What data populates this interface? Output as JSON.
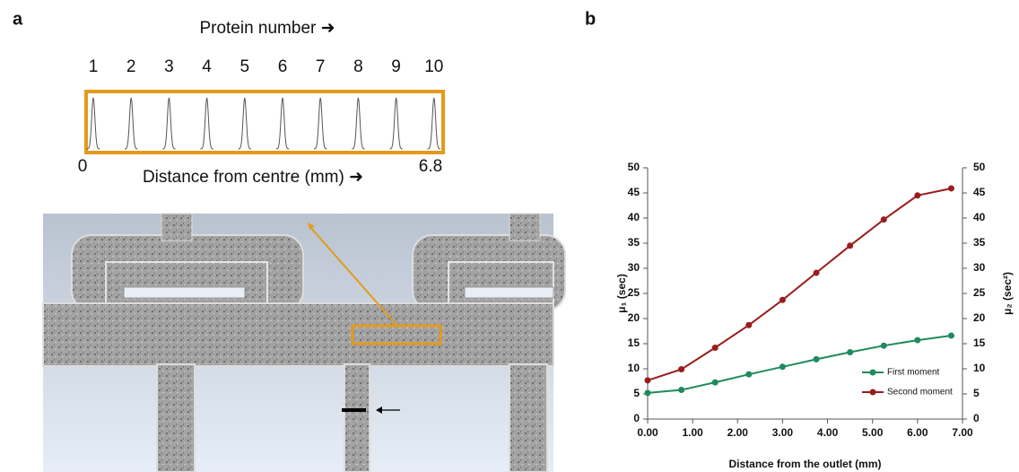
{
  "panel_a": {
    "label": "a",
    "protein_axis_title": "Protein number ➜",
    "protein_numbers": [
      "1",
      "2",
      "3",
      "4",
      "5",
      "6",
      "7",
      "8",
      "9",
      "10"
    ],
    "distance_start": "0",
    "distance_end": "6.8",
    "distance_axis_title": "Distance from centre (mm) ➜"
  },
  "panel_b": {
    "label": "b"
  },
  "chart_data": {
    "type": "line",
    "x_label": "Distance from the outlet (mm)",
    "y_label": "μ₁ (sec)",
    "y2_label": "μ₂ (sec²)",
    "x": [
      0,
      0.75,
      1.5,
      2.25,
      3,
      3.75,
      4.5,
      5.25,
      6,
      6.75
    ],
    "series": [
      {
        "name": "First moment",
        "color": "#1e8a5e",
        "values": [
          5.2,
          5.8,
          7.3,
          8.9,
          10.4,
          11.9,
          13.3,
          14.6,
          15.7,
          16.6
        ]
      },
      {
        "name": "Second moment",
        "color": "#9b1c1c",
        "axis": "y2",
        "values": [
          7.7,
          9.9,
          14.2,
          18.7,
          23.7,
          29.1,
          34.5,
          39.7,
          44.5,
          45.9
        ]
      }
    ],
    "xlim": [
      0,
      7
    ],
    "xticks": [
      {
        "value": 0,
        "label": "0.00"
      },
      {
        "value": 1,
        "label": "1.00"
      },
      {
        "value": 2,
        "label": "2.00"
      },
      {
        "value": 3,
        "label": "3.00"
      },
      {
        "value": 4,
        "label": "4.00"
      },
      {
        "value": 5,
        "label": "5.00"
      },
      {
        "value": 6,
        "label": "6.00"
      },
      {
        "value": 7,
        "label": "7.00"
      }
    ],
    "ylim": [
      0,
      50
    ],
    "yticks": [
      0,
      5,
      10,
      15,
      20,
      25,
      30,
      35,
      40,
      45,
      50
    ],
    "y2lim": [
      0,
      50
    ],
    "y2ticks": [
      0,
      5,
      10,
      15,
      20,
      25,
      30,
      35,
      40,
      45,
      50
    ],
    "legend": "bottom-right"
  }
}
